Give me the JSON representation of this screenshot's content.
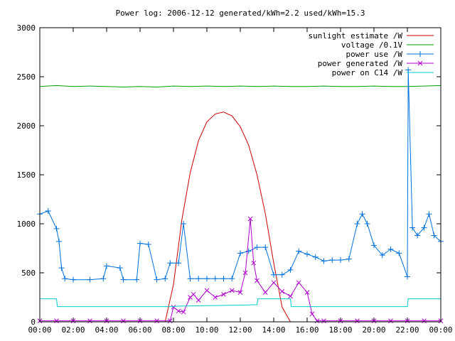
{
  "chart_data": {
    "type": "line",
    "title": "Power log: 2006-12-12 generated/kWh=2.2 used/kWh=15.3",
    "xlabel": "",
    "ylabel": "",
    "x_unit": "hours",
    "xlim": [
      0,
      24
    ],
    "ylim": [
      0,
      3000
    ],
    "y_ticks": [
      0,
      500,
      1000,
      1500,
      2000,
      2500,
      3000
    ],
    "x_ticks": [
      0,
      2,
      4,
      6,
      8,
      10,
      12,
      14,
      16,
      18,
      20,
      22,
      24
    ],
    "x_tick_labels": [
      "00:00",
      "02:00",
      "04:00",
      "06:00",
      "08:00",
      "10:00",
      "12:00",
      "14:00",
      "16:00",
      "18:00",
      "20:00",
      "22:00",
      "00:00"
    ],
    "grid": false,
    "legend_position": "top-right",
    "series": [
      {
        "name": "sunlight estimate /W",
        "color": "#cc0000",
        "marker": "none",
        "x": [
          7.5,
          8.0,
          8.5,
          9.0,
          9.5,
          10.0,
          10.5,
          11.0,
          11.5,
          12.0,
          12.5,
          13.0,
          13.5,
          14.0,
          14.5,
          15.0
        ],
        "y": [
          0,
          380,
          1040,
          1520,
          1850,
          2040,
          2120,
          2140,
          2100,
          1990,
          1800,
          1500,
          1100,
          600,
          150,
          0
        ]
      },
      {
        "name": "voltage /0.1V",
        "color": "#00a000",
        "marker": "none",
        "x": [
          0,
          1,
          2,
          3,
          4,
          5,
          6,
          7,
          8,
          9,
          10,
          11,
          12,
          13,
          14,
          15,
          16,
          17,
          18,
          19,
          20,
          21,
          22,
          23,
          24
        ],
        "y": [
          2400,
          2410,
          2400,
          2405,
          2400,
          2395,
          2400,
          2395,
          2405,
          2400,
          2405,
          2400,
          2405,
          2400,
          2405,
          2400,
          2400,
          2405,
          2400,
          2400,
          2405,
          2400,
          2400,
          2405,
          2410
        ]
      },
      {
        "name": "power use /W",
        "color": "#0070dd",
        "marker": "plus",
        "x": [
          0,
          0.5,
          1.0,
          1.15,
          1.3,
          1.5,
          2,
          3,
          3.8,
          4,
          4.8,
          5,
          5.8,
          6,
          6.5,
          7,
          7.5,
          7.8,
          8.3,
          8.6,
          9,
          9.5,
          10,
          10.5,
          11,
          11.5,
          12,
          12.5,
          13,
          13.5,
          14,
          14.5,
          15,
          15.5,
          16,
          16.5,
          17,
          17.5,
          18,
          18.5,
          19,
          19.3,
          19.6,
          20,
          20.5,
          21,
          21.5,
          22,
          22.05,
          22.3,
          22.6,
          23,
          23.3,
          23.6,
          24
        ],
        "y": [
          1100,
          1130,
          950,
          820,
          550,
          440,
          430,
          430,
          440,
          570,
          550,
          430,
          430,
          800,
          790,
          430,
          440,
          600,
          600,
          1000,
          440,
          440,
          440,
          440,
          440,
          440,
          700,
          720,
          760,
          760,
          480,
          480,
          530,
          720,
          690,
          660,
          620,
          630,
          630,
          640,
          1000,
          1100,
          1000,
          780,
          680,
          740,
          700,
          460,
          2570,
          960,
          880,
          960,
          1100,
          880,
          820
        ]
      },
      {
        "name": "power generated /W",
        "color": "#b000d0",
        "marker": "x",
        "x": [
          0,
          1,
          2,
          3,
          4,
          5,
          6,
          7,
          7.8,
          8.0,
          8.3,
          8.6,
          9.0,
          9.2,
          9.5,
          10,
          10.5,
          11,
          11.5,
          12,
          12.3,
          12.6,
          12.8,
          13,
          13.5,
          14,
          14.5,
          15,
          15.5,
          16,
          16.3,
          16.6,
          17,
          18,
          19,
          20,
          21,
          22,
          23,
          24
        ],
        "y": [
          10,
          10,
          10,
          10,
          10,
          10,
          10,
          10,
          10,
          150,
          110,
          100,
          250,
          280,
          220,
          320,
          250,
          280,
          320,
          300,
          500,
          1050,
          600,
          420,
          300,
          400,
          310,
          260,
          400,
          300,
          80,
          10,
          10,
          10,
          10,
          10,
          10,
          10,
          10,
          10
        ]
      },
      {
        "name": "power on C14 /W",
        "color": "#00cccc",
        "marker": "none",
        "x": [
          0,
          1.0,
          1.05,
          8.0,
          8.3,
          10.0,
          12.0,
          13.0,
          13.05,
          15.0,
          15.05,
          22.0,
          22.05,
          24
        ],
        "y": [
          235,
          235,
          155,
          155,
          160,
          165,
          170,
          175,
          235,
          235,
          155,
          155,
          235,
          235
        ]
      }
    ]
  }
}
